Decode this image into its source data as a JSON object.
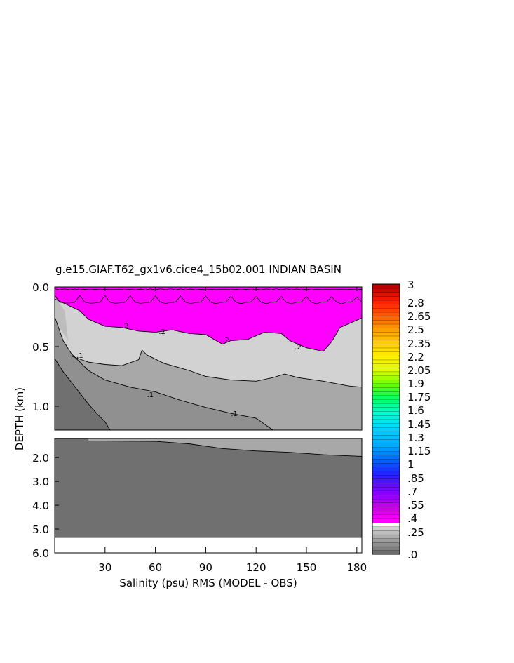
{
  "chart_data": {
    "type": "heatmap",
    "title": "g.e15.GIAF.T62_gx1v6.cice4_15b02.001 INDIAN BASIN",
    "xlabel": "Salinity (psu) RMS (MODEL - OBS)",
    "ylabel": "DEPTH (km)",
    "xlim": [
      0,
      183
    ],
    "ylim_upper": [
      0,
      1.2
    ],
    "ylim_lower": [
      1.2,
      6.0
    ],
    "x_ticks": [
      30,
      60,
      90,
      120,
      150,
      180
    ],
    "y_ticks_upper": [
      "0.0",
      "0.5",
      "1.0"
    ],
    "y_ticks_lower": [
      "2.0",
      "3.0",
      "4.0",
      "5.0",
      "6.0"
    ],
    "colorbar_labels": [
      "3",
      "2.8",
      "2.65",
      "2.5",
      "2.35",
      "2.2",
      "2.05",
      "1.9",
      "1.75",
      "1.6",
      "1.45",
      "1.3",
      "1.15",
      "1",
      ".85",
      ".7",
      ".55",
      ".4",
      ".25",
      ".0"
    ],
    "contour_labels": [
      ".1",
      ".1",
      ".1",
      ".2",
      ".2",
      ".2",
      ".2"
    ],
    "ocean_floor_depth": 5.35,
    "contours": [
      {
        "level": 0.05,
        "points": [
          [
            0,
            0.6
          ],
          [
            5,
            0.71
          ],
          [
            10,
            0.8
          ],
          [
            15,
            0.89
          ],
          [
            20,
            0.98
          ],
          [
            25,
            1.06
          ],
          [
            30,
            1.13
          ],
          [
            33,
            1.2
          ]
        ]
      },
      {
        "level": 0.1,
        "points": [
          [
            0,
            0.25
          ],
          [
            5,
            0.45
          ],
          [
            10,
            0.56
          ],
          [
            20,
            0.7
          ],
          [
            30,
            0.78
          ],
          [
            45,
            0.84
          ],
          [
            60,
            0.88
          ],
          [
            75,
            0.95
          ],
          [
            90,
            1.01
          ],
          [
            105,
            1.06
          ],
          [
            120,
            1.1
          ],
          [
            130,
            1.2
          ]
        ]
      },
      {
        "level": 0.1,
        "points": [
          [
            10,
            0.58
          ],
          [
            20,
            0.63
          ],
          [
            30,
            0.65
          ],
          [
            40,
            0.66
          ],
          [
            50,
            0.61
          ],
          [
            52,
            0.53
          ],
          [
            55,
            0.57
          ],
          [
            65,
            0.64
          ],
          [
            80,
            0.7
          ],
          [
            90,
            0.75
          ],
          [
            105,
            0.78
          ],
          [
            120,
            0.79
          ],
          [
            130,
            0.76
          ],
          [
            137,
            0.73
          ],
          [
            145,
            0.76
          ],
          [
            160,
            0.79
          ],
          [
            175,
            0.83
          ],
          [
            183,
            0.84
          ]
        ]
      },
      {
        "level": 0.2,
        "points": [
          [
            0,
            0.1
          ],
          [
            15,
            0.2
          ],
          [
            20,
            0.27
          ],
          [
            30,
            0.33
          ],
          [
            40,
            0.34
          ],
          [
            50,
            0.37
          ],
          [
            60,
            0.38
          ],
          [
            70,
            0.36
          ],
          [
            80,
            0.39
          ],
          [
            90,
            0.4
          ],
          [
            100,
            0.48
          ],
          [
            105,
            0.45
          ],
          [
            115,
            0.44
          ],
          [
            125,
            0.38
          ],
          [
            135,
            0.39
          ],
          [
            140,
            0.45
          ],
          [
            150,
            0.51
          ],
          [
            160,
            0.54
          ],
          [
            165,
            0.46
          ],
          [
            170,
            0.34
          ],
          [
            183,
            0.26
          ]
        ]
      },
      {
        "level": 0.1,
        "points": [
          [
            20,
            1.3
          ],
          [
            60,
            1.32
          ],
          [
            80,
            1.42
          ],
          [
            100,
            1.62
          ],
          [
            120,
            1.72
          ],
          [
            140,
            1.78
          ],
          [
            160,
            1.88
          ],
          [
            183,
            1.95
          ]
        ]
      }
    ]
  }
}
